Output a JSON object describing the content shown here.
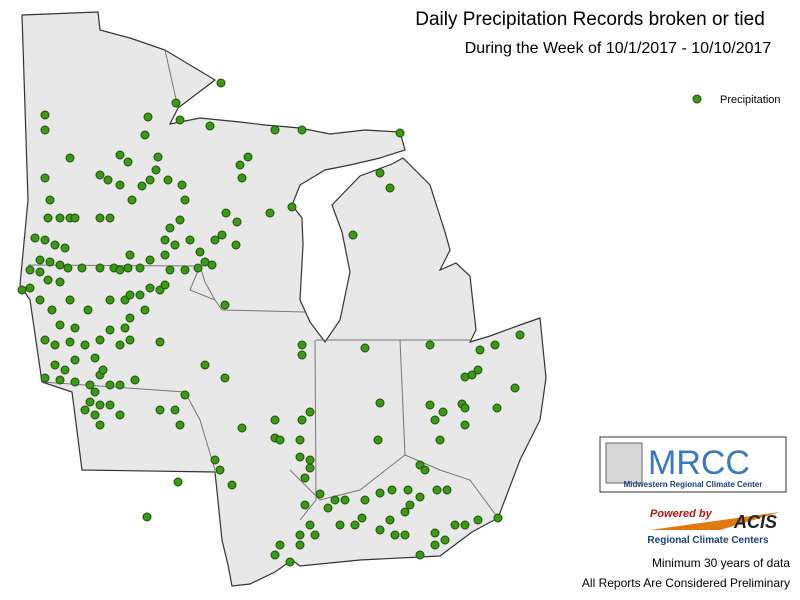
{
  "title": "Daily Precipitation Records broken or tied",
  "subtitle": "During the Week of 10/1/2017 - 10/10/2017",
  "legend": {
    "label": "Precipitation"
  },
  "logo": {
    "name": "MRCC",
    "full_name": "Midwestern Regional Climate Center"
  },
  "acis": {
    "powered_by": "Powered by",
    "name": "ACIS",
    "tagline": "Regional Climate Centers"
  },
  "notes": [
    "Minimum 30 years of data",
    "All Reports Are Considered Preliminary"
  ]
}
